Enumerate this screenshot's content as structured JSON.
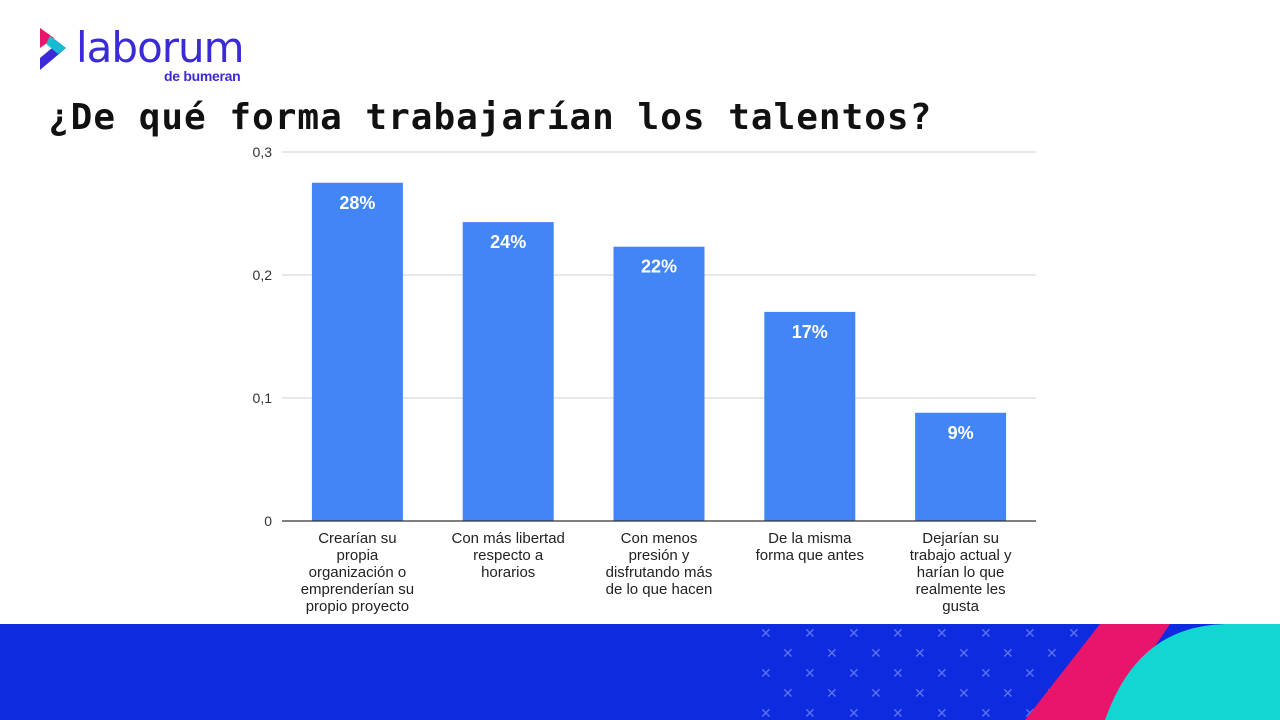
{
  "brand": {
    "name": "laborum",
    "subtitle": "de bumeran"
  },
  "colors": {
    "bar": "#4285f4",
    "footer": "#0f2be0",
    "accent_pink": "#e8156a",
    "accent_cyan": "#12d6d2"
  },
  "chart_data": {
    "type": "bar",
    "title": "¿De qué forma trabajarían los talentos?",
    "categories": [
      [
        "Crearían su",
        "propia",
        "organización o",
        "emprenderían su",
        "propio proyecto"
      ],
      [
        "Con más libertad",
        "respecto a",
        "horarios"
      ],
      [
        "Con menos",
        "presión y",
        "disfrutando más",
        "de lo que hacen"
      ],
      [
        "De la misma",
        "forma que antes"
      ],
      [
        "Dejarían su",
        "trabajo actual y",
        "harían lo que",
        "realmente les",
        "gusta"
      ]
    ],
    "values": [
      0.275,
      0.243,
      0.223,
      0.17,
      0.088
    ],
    "data_labels": [
      "28%",
      "24%",
      "22%",
      "17%",
      "9%"
    ],
    "yticks": [
      "0",
      "0,1",
      "0,2",
      "0,3"
    ],
    "ylim": [
      0,
      0.3
    ],
    "grid": true,
    "legend": "none"
  }
}
